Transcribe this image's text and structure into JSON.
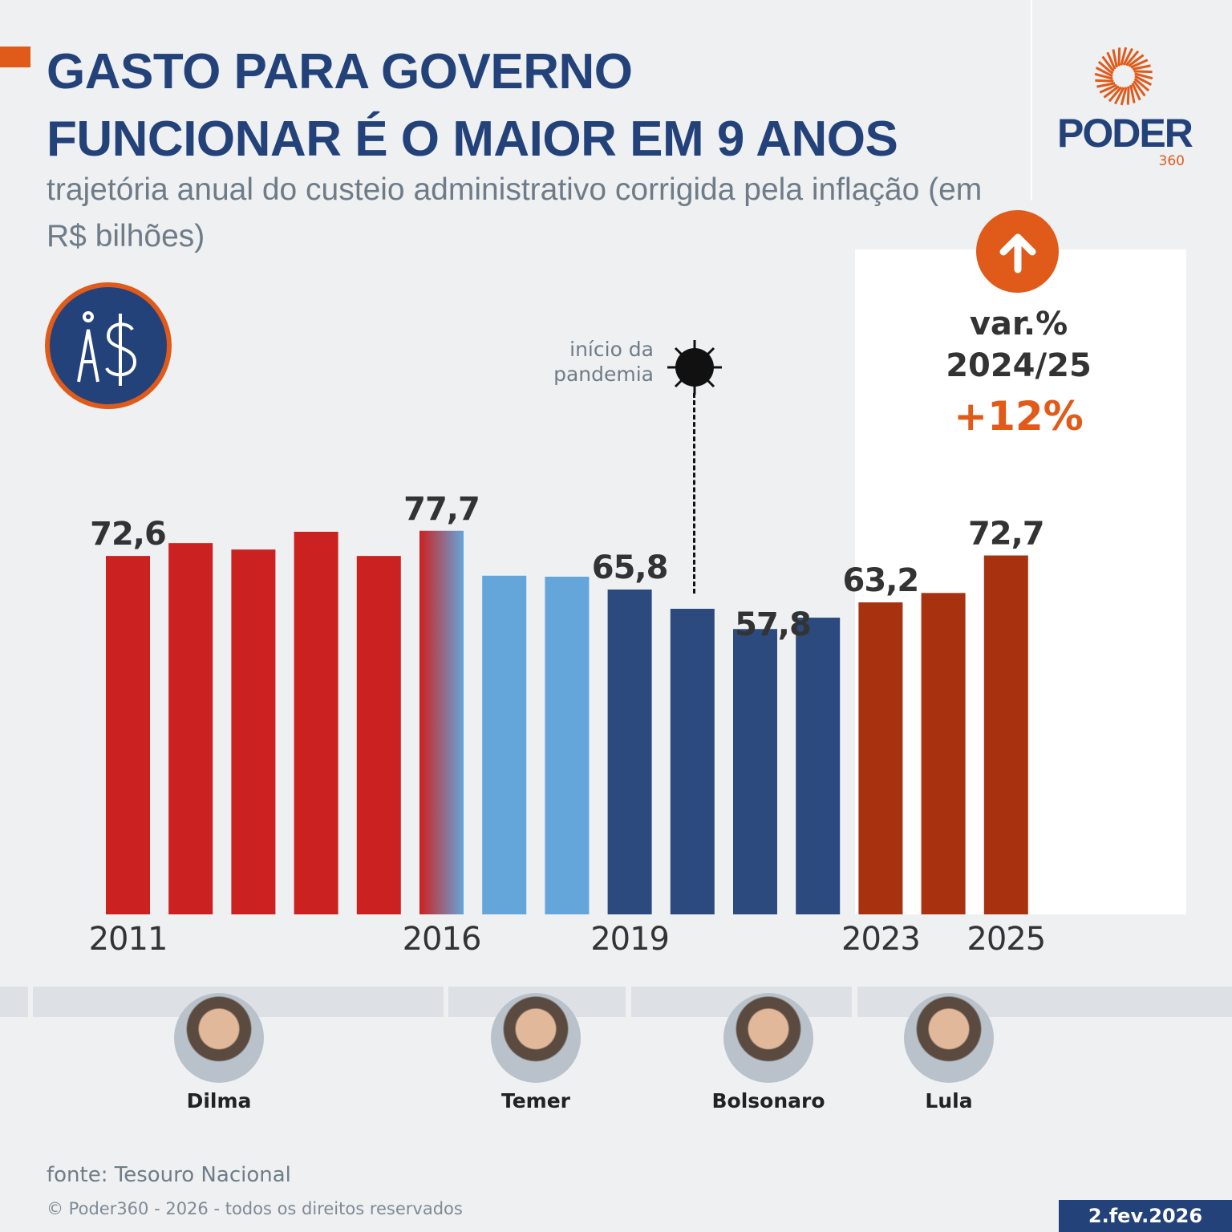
{
  "title": "GASTO PARA GOVERNO FUNCIONAR É O MAIOR EM 9 ANOS",
  "title_lines": [
    "GASTO PARA GOVERNO",
    "FUNCIONAR É O MAIOR EM 9 ANOS"
  ],
  "subtitle": "trajetória anual do custeio administrativo corrigida pela inflação (em R$ bilhões)",
  "logo": {
    "word": "PODER",
    "number": "360"
  },
  "variation": {
    "label_line1": "var.%",
    "label_line2": "2024/25",
    "value": "+12%",
    "icon": "arrow-up-icon"
  },
  "annotation": {
    "text_line1": "início da",
    "text_line2": "pandemia",
    "icon": "virus-icon",
    "year": 2020
  },
  "colors": {
    "Dilma": "#cc2121",
    "Temer": "#64a6da",
    "Bolsonaro": "#2c4a7e",
    "Lula": "#a83210",
    "accent": "#e05a1a",
    "navy": "#24427a"
  },
  "chart_data": {
    "type": "bar",
    "title": "GASTO PARA GOVERNO FUNCIONAR É O MAIOR EM 9 ANOS",
    "ylabel": "R$ bilhões",
    "ylim": [
      0,
      80
    ],
    "grid": false,
    "categories": [
      "2011",
      "2012",
      "2013",
      "2014",
      "2015",
      "2016",
      "2017",
      "2018",
      "2019",
      "2020",
      "2021",
      "2022",
      "2023",
      "2024",
      "2025"
    ],
    "values": [
      72.6,
      75.2,
      73.9,
      77.5,
      72.6,
      77.7,
      68.6,
      68.4,
      65.8,
      61.9,
      57.8,
      60.1,
      63.2,
      65.1,
      72.7
    ],
    "president": [
      "Dilma",
      "Dilma",
      "Dilma",
      "Dilma",
      "Dilma",
      "Dilma/Temer",
      "Temer",
      "Temer",
      "Bolsonaro",
      "Bolsonaro",
      "Bolsonaro",
      "Bolsonaro",
      "Lula",
      "Lula",
      "Lula"
    ],
    "data_labels": {
      "2011": "72,6",
      "2016": "77,7",
      "2019": "65,8",
      "2021": "57,8",
      "2023": "63,2",
      "2025": "72,7"
    },
    "tick_labels": [
      "2011",
      "2016",
      "2019",
      "2023",
      "2025"
    ]
  },
  "presidents": [
    {
      "name": "Dilma"
    },
    {
      "name": "Temer"
    },
    {
      "name": "Bolsonaro"
    },
    {
      "name": "Lula"
    }
  ],
  "footer": {
    "source": "fonte: Tesouro Nacional",
    "copyright": "© Poder360 - 2026 - todos os direitos reservados",
    "date": "2.fev.2026"
  }
}
